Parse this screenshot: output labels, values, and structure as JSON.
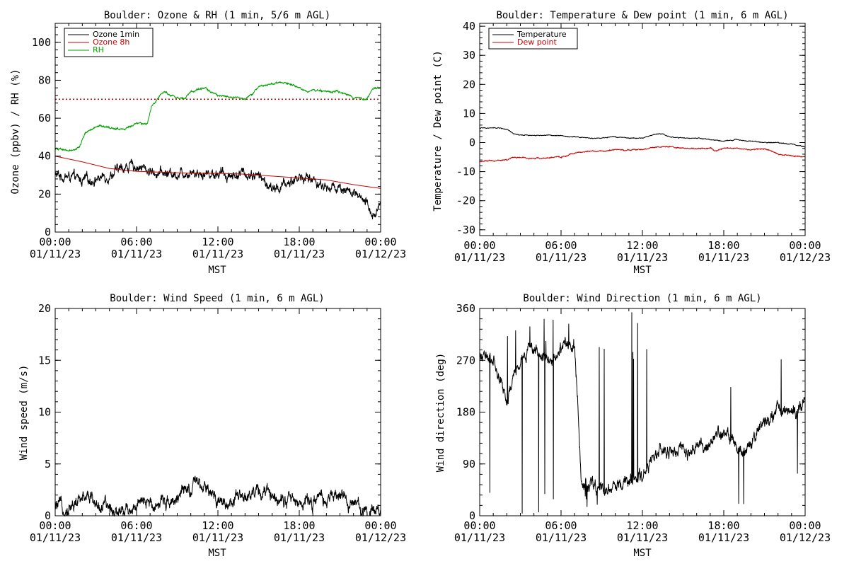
{
  "chart_data": [
    {
      "type": "line",
      "title": "Boulder: Ozone & RH (1 min, 5/6 m AGL)",
      "xlabel": "MST",
      "ylabel": "Ozone (ppbv) / RH (%)",
      "xlim": [
        "00:00 01/11/23",
        "00:00 01/12/23"
      ],
      "ylim": [
        0,
        110
      ],
      "x_ticks": [
        {
          "time": "00:00",
          "date": "01/11/23"
        },
        {
          "time": "06:00",
          "date": "01/11/23"
        },
        {
          "time": "12:00",
          "date": "01/11/23"
        },
        {
          "time": "18:00",
          "date": "01/11/23"
        },
        {
          "time": "00:00",
          "date": "01/12/23"
        }
      ],
      "y_ticks": [
        0,
        20,
        40,
        60,
        80,
        100
      ],
      "legend_placement": "top-left",
      "reference_line": {
        "y": 70,
        "color": "#cc0000",
        "style": "dotted"
      },
      "series": [
        {
          "name": "Ozone 1min",
          "color": "#000000",
          "noise": 2.8,
          "points": [
            [
              0,
              30
            ],
            [
              1,
              29
            ],
            [
              2,
              27
            ],
            [
              3,
              28
            ],
            [
              4,
              30
            ],
            [
              5,
              34
            ],
            [
              6,
              35
            ],
            [
              7,
              32
            ],
            [
              8,
              31
            ],
            [
              9,
              31
            ],
            [
              10,
              32
            ],
            [
              11,
              31
            ],
            [
              12,
              31
            ],
            [
              13,
              30
            ],
            [
              14,
              31
            ],
            [
              15,
              30
            ],
            [
              16,
              22
            ],
            [
              17,
              25
            ],
            [
              18,
              29
            ],
            [
              19,
              28
            ],
            [
              20,
              23
            ],
            [
              21,
              24
            ],
            [
              22,
              20
            ],
            [
              23,
              14
            ],
            [
              23.6,
              8
            ],
            [
              24,
              18
            ]
          ]
        },
        {
          "name": "Ozone 8h",
          "color": "#cc0000",
          "noise": 0,
          "points": [
            [
              0,
              40
            ],
            [
              2,
              37
            ],
            [
              4,
              33.5
            ],
            [
              6,
              32
            ],
            [
              8,
              31.5
            ],
            [
              10,
              31
            ],
            [
              12,
              31
            ],
            [
              14,
              30.5
            ],
            [
              16,
              29.5
            ],
            [
              18,
              28.5
            ],
            [
              20,
              27.5
            ],
            [
              22,
              25
            ],
            [
              24,
              23
            ]
          ]
        },
        {
          "name": "RH",
          "color": "#00a000",
          "noise": 0.5,
          "points": [
            [
              0,
              44
            ],
            [
              1.2,
              43
            ],
            [
              1.8,
              45
            ],
            [
              2.2,
              52
            ],
            [
              2.6,
              54
            ],
            [
              3.3,
              56
            ],
            [
              4,
              55
            ],
            [
              5,
              54
            ],
            [
              6,
              57
            ],
            [
              6.8,
              57
            ],
            [
              7.1,
              66
            ],
            [
              7.5,
              70
            ],
            [
              8,
              74
            ],
            [
              9,
              71
            ],
            [
              9.5,
              70
            ],
            [
              10,
              74
            ],
            [
              11,
              76
            ],
            [
              11.5,
              74
            ],
            [
              12,
              72
            ],
            [
              13,
              71
            ],
            [
              14,
              70
            ],
            [
              14.5,
              72
            ],
            [
              15,
              77
            ],
            [
              16,
              78
            ],
            [
              17,
              79
            ],
            [
              18,
              76
            ],
            [
              18.5,
              74
            ],
            [
              19,
              75
            ],
            [
              20,
              74
            ],
            [
              21,
              74
            ],
            [
              22,
              71
            ],
            [
              23,
              70
            ],
            [
              23.5,
              76
            ],
            [
              24,
              76
            ]
          ]
        }
      ]
    },
    {
      "type": "line",
      "title": "Boulder: Temperature & Dew point (1 min, 6 m AGL)",
      "xlabel": "MST",
      "ylabel": "Temperature / Dew point (C)",
      "xlim": [
        "00:00 01/11/23",
        "00:00 01/12/23"
      ],
      "ylim": [
        -32,
        41
      ],
      "x_ticks": [
        {
          "time": "00:00",
          "date": "01/11/23"
        },
        {
          "time": "06:00",
          "date": "01/11/23"
        },
        {
          "time": "12:00",
          "date": "01/11/23"
        },
        {
          "time": "18:00",
          "date": "01/11/23"
        },
        {
          "time": "00:00",
          "date": "01/12/23"
        }
      ],
      "y_ticks": [
        -30,
        -20,
        -10,
        0,
        10,
        20,
        30,
        40
      ],
      "legend_placement": "top-left",
      "series": [
        {
          "name": "Temperature",
          "color": "#000000",
          "noise": 0.15,
          "points": [
            [
              0,
              5
            ],
            [
              1.5,
              5
            ],
            [
              2,
              4.5
            ],
            [
              2.5,
              3
            ],
            [
              3,
              2.5
            ],
            [
              4,
              2.5
            ],
            [
              5,
              2.5
            ],
            [
              6,
              2.5
            ],
            [
              6.5,
              2
            ],
            [
              7,
              2
            ],
            [
              8,
              1.5
            ],
            [
              9,
              1.5
            ],
            [
              10,
              2
            ],
            [
              11,
              1.5
            ],
            [
              12,
              1.5
            ],
            [
              13,
              3
            ],
            [
              13.5,
              3
            ],
            [
              14,
              2
            ],
            [
              15,
              1.5
            ],
            [
              16,
              1.5
            ],
            [
              17,
              1
            ],
            [
              18,
              0.5
            ],
            [
              19,
              1
            ],
            [
              20,
              0.5
            ],
            [
              21,
              0
            ],
            [
              22,
              0
            ],
            [
              23,
              -0.5
            ],
            [
              24,
              -1.5
            ]
          ]
        },
        {
          "name": "Dew point",
          "color": "#cc0000",
          "noise": 0.2,
          "points": [
            [
              0,
              -6.5
            ],
            [
              2,
              -6
            ],
            [
              2.5,
              -5
            ],
            [
              4,
              -5.5
            ],
            [
              6,
              -5
            ],
            [
              6.5,
              -4.5
            ],
            [
              7,
              -3.5
            ],
            [
              8,
              -3
            ],
            [
              9,
              -3
            ],
            [
              10,
              -2.5
            ],
            [
              12,
              -2.5
            ],
            [
              13,
              -1.5
            ],
            [
              14,
              -1.5
            ],
            [
              15,
              -2
            ],
            [
              17,
              -2
            ],
            [
              17.5,
              -3
            ],
            [
              18,
              -2
            ],
            [
              19,
              -2
            ],
            [
              20,
              -2.5
            ],
            [
              21,
              -2
            ],
            [
              22,
              -4
            ],
            [
              23,
              -4.5
            ],
            [
              24,
              -5
            ]
          ]
        }
      ]
    },
    {
      "type": "line",
      "title": "Boulder: Wind Speed (1 min, 6 m AGL)",
      "xlabel": "MST",
      "ylabel": "Wind speed (m/s)",
      "xlim": [
        "00:00 01/11/23",
        "00:00 01/12/23"
      ],
      "ylim": [
        0,
        20
      ],
      "x_ticks": [
        {
          "time": "00:00",
          "date": "01/11/23"
        },
        {
          "time": "06:00",
          "date": "01/11/23"
        },
        {
          "time": "12:00",
          "date": "01/11/23"
        },
        {
          "time": "18:00",
          "date": "01/11/23"
        },
        {
          "time": "00:00",
          "date": "01/12/23"
        }
      ],
      "y_ticks": [
        0,
        5,
        10,
        15,
        20
      ],
      "series": [
        {
          "name": "",
          "color": "#000000",
          "noise": 0.7,
          "points": [
            [
              0,
              0.8
            ],
            [
              1,
              0.8
            ],
            [
              2,
              1.5
            ],
            [
              2.4,
              2.5
            ],
            [
              3,
              1
            ],
            [
              4,
              0.7
            ],
            [
              5,
              0.6
            ],
            [
              6,
              1
            ],
            [
              7,
              1.2
            ],
            [
              8,
              1.4
            ],
            [
              9,
              1.8
            ],
            [
              10,
              2.5
            ],
            [
              10.5,
              3
            ],
            [
              11,
              2.5
            ],
            [
              12,
              1.5
            ],
            [
              13,
              1.2
            ],
            [
              14,
              1.8
            ],
            [
              14.5,
              2.5
            ],
            [
              15,
              2.3
            ],
            [
              16,
              2
            ],
            [
              17,
              1.8
            ],
            [
              18,
              1.2
            ],
            [
              19,
              1.5
            ],
            [
              20,
              1.5
            ],
            [
              21,
              2
            ],
            [
              22,
              1
            ],
            [
              23,
              0.5
            ],
            [
              24,
              0.7
            ]
          ]
        }
      ]
    },
    {
      "type": "line",
      "title": "Boulder: Wind Direction (1 min, 6 m AGL)",
      "xlabel": "MST",
      "ylabel": "Wind direction (deg)",
      "xlim": [
        "00:00 01/11/23",
        "00:00 01/12/23"
      ],
      "ylim": [
        0,
        360
      ],
      "x_ticks": [
        {
          "time": "00:00",
          "date": "01/11/23"
        },
        {
          "time": "06:00",
          "date": "01/11/23"
        },
        {
          "time": "12:00",
          "date": "01/11/23"
        },
        {
          "time": "18:00",
          "date": "01/11/23"
        },
        {
          "time": "00:00",
          "date": "01/12/23"
        }
      ],
      "y_ticks": [
        0,
        90,
        180,
        270,
        360
      ],
      "series": [
        {
          "name": "",
          "color": "#000000",
          "noise": 12,
          "spiky_until_hour": 12.6,
          "points": [
            [
              0,
              280
            ],
            [
              1,
              270
            ],
            [
              2,
              200
            ],
            [
              3,
              270
            ],
            [
              4,
              290
            ],
            [
              5,
              260
            ],
            [
              6,
              290
            ],
            [
              7,
              300
            ],
            [
              7.5,
              60
            ],
            [
              8,
              60
            ],
            [
              9,
              40
            ],
            [
              10,
              50
            ],
            [
              11,
              60
            ],
            [
              12,
              70
            ],
            [
              12.5,
              90
            ],
            [
              13,
              110
            ],
            [
              14,
              110
            ],
            [
              15,
              110
            ],
            [
              16,
              115
            ],
            [
              17,
              120
            ],
            [
              18,
              150
            ],
            [
              19,
              110
            ],
            [
              20,
              120
            ],
            [
              21,
              160
            ],
            [
              22,
              180
            ],
            [
              23,
              180
            ],
            [
              24,
              200
            ]
          ]
        }
      ]
    }
  ]
}
